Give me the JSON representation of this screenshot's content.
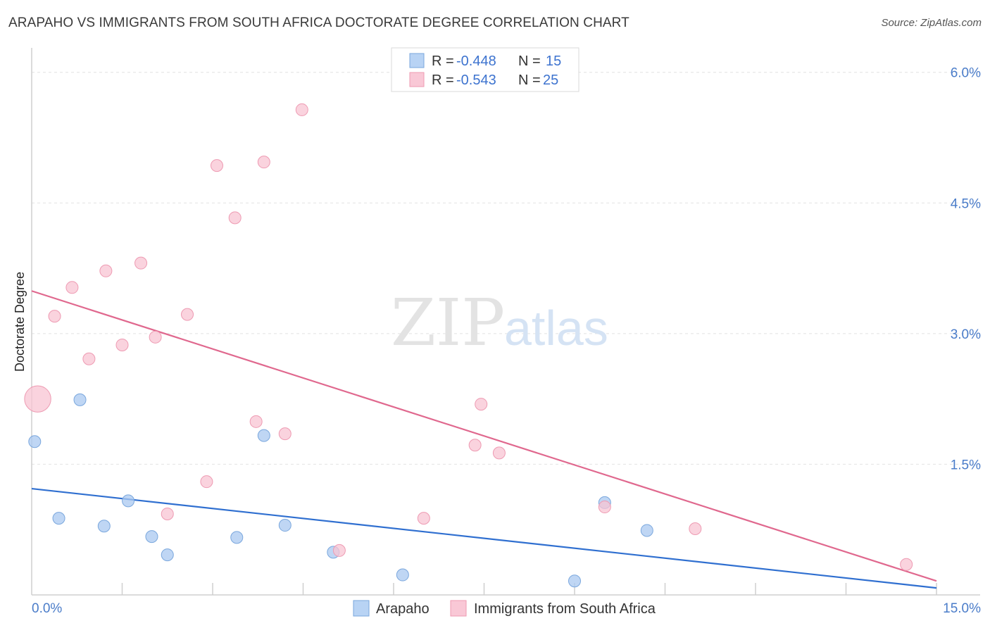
{
  "chart_data": {
    "type": "scatter",
    "title": "ARAPAHO VS IMMIGRANTS FROM SOUTH AFRICA DOCTORATE DEGREE CORRELATION CHART",
    "source": "Source: ZipAtlas.com",
    "xlabel": "",
    "ylabel": "Doctorate Degree",
    "xlim": [
      0,
      15
    ],
    "ylim": [
      0,
      6.2
    ],
    "x_tick_labels": [
      {
        "value": 0,
        "label": "0.0%"
      },
      {
        "value": 15,
        "label": "15.0%"
      }
    ],
    "y_tick_labels": [
      {
        "value": 1.5,
        "label": "1.5%"
      },
      {
        "value": 3.0,
        "label": "3.0%"
      },
      {
        "value": 4.5,
        "label": "4.5%"
      },
      {
        "value": 6.0,
        "label": "6.0%"
      }
    ],
    "watermark": {
      "part1": "ZIP",
      "part2": "atlas"
    },
    "legend_top": [
      {
        "r_label": "R =",
        "r_value": "-0.448",
        "n_label": "N =",
        "n_value": "15"
      },
      {
        "r_label": "R =",
        "r_value": "-0.543",
        "n_label": "N =",
        "n_value": "25"
      }
    ],
    "series": [
      {
        "name": "Arapaho",
        "color": "#a9c8f0",
        "stroke": "#7aa7dd",
        "line_color": "#2f6fd0",
        "trend": {
          "x0": 0,
          "y0": 1.22,
          "x1": 15,
          "y1": 0.08
        },
        "points": [
          {
            "x": 0.05,
            "y": 1.76,
            "s": 1
          },
          {
            "x": 0.8,
            "y": 2.24,
            "s": 1
          },
          {
            "x": 0.45,
            "y": 0.88,
            "s": 1
          },
          {
            "x": 1.2,
            "y": 0.79,
            "s": 1
          },
          {
            "x": 1.6,
            "y": 1.08,
            "s": 1
          },
          {
            "x": 1.99,
            "y": 0.67,
            "s": 1
          },
          {
            "x": 2.25,
            "y": 0.46,
            "s": 1
          },
          {
            "x": 3.4,
            "y": 0.66,
            "s": 1
          },
          {
            "x": 3.85,
            "y": 1.83,
            "s": 1
          },
          {
            "x": 4.2,
            "y": 0.8,
            "s": 1
          },
          {
            "x": 5.0,
            "y": 0.49,
            "s": 1
          },
          {
            "x": 6.15,
            "y": 0.23,
            "s": 1
          },
          {
            "x": 9.5,
            "y": 1.06,
            "s": 1
          },
          {
            "x": 9.0,
            "y": 0.16,
            "s": 1
          },
          {
            "x": 10.2,
            "y": 0.74,
            "s": 1
          }
        ]
      },
      {
        "name": "Immigrants from South Africa",
        "color": "#f8c4d3",
        "stroke": "#ee9ab2",
        "line_color": "#e0688e",
        "trend": {
          "x0": 0,
          "y0": 3.49,
          "x1": 15,
          "y1": 0.16
        },
        "points": [
          {
            "x": 0.1,
            "y": 2.25,
            "s": 2.2
          },
          {
            "x": 0.38,
            "y": 3.2,
            "s": 1
          },
          {
            "x": 0.67,
            "y": 3.53,
            "s": 1
          },
          {
            "x": 0.95,
            "y": 2.71,
            "s": 1
          },
          {
            "x": 1.23,
            "y": 3.72,
            "s": 1
          },
          {
            "x": 1.5,
            "y": 2.87,
            "s": 1
          },
          {
            "x": 1.81,
            "y": 3.81,
            "s": 1
          },
          {
            "x": 2.05,
            "y": 2.96,
            "s": 1
          },
          {
            "x": 2.58,
            "y": 3.22,
            "s": 1
          },
          {
            "x": 2.9,
            "y": 1.3,
            "s": 1
          },
          {
            "x": 3.07,
            "y": 4.93,
            "s": 1
          },
          {
            "x": 3.37,
            "y": 4.33,
            "s": 1
          },
          {
            "x": 3.72,
            "y": 1.99,
            "s": 1
          },
          {
            "x": 3.85,
            "y": 4.97,
            "s": 1
          },
          {
            "x": 4.2,
            "y": 1.85,
            "s": 1
          },
          {
            "x": 4.48,
            "y": 5.57,
            "s": 1
          },
          {
            "x": 2.25,
            "y": 0.93,
            "s": 1
          },
          {
            "x": 5.1,
            "y": 0.51,
            "s": 1
          },
          {
            "x": 6.5,
            "y": 0.88,
            "s": 1
          },
          {
            "x": 7.35,
            "y": 1.72,
            "s": 1
          },
          {
            "x": 7.45,
            "y": 2.19,
            "s": 1
          },
          {
            "x": 7.75,
            "y": 1.63,
            "s": 1
          },
          {
            "x": 9.5,
            "y": 1.01,
            "s": 1
          },
          {
            "x": 11.0,
            "y": 0.76,
            "s": 1
          },
          {
            "x": 14.5,
            "y": 0.35,
            "s": 1
          }
        ]
      }
    ]
  }
}
